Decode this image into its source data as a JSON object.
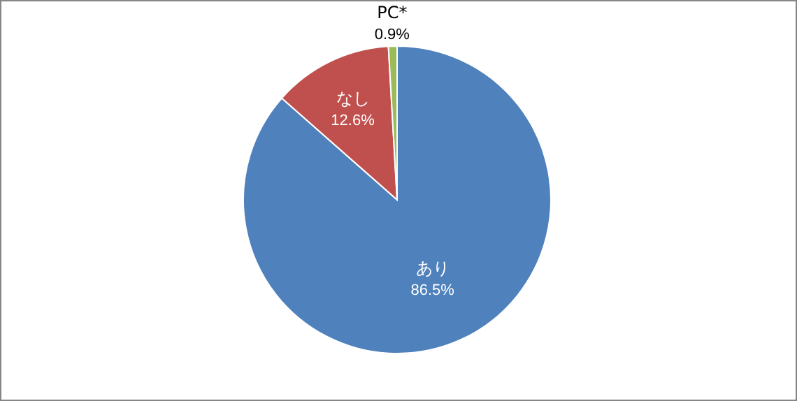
{
  "chart_data": {
    "type": "pie",
    "categories": [
      "あり",
      "なし",
      "PC*"
    ],
    "values": [
      86.5,
      12.6,
      0.9
    ],
    "value_labels": [
      "86.5%",
      "12.6%",
      "0.9%"
    ],
    "colors": [
      "#4f81bd",
      "#c0504d",
      "#9bbb59"
    ]
  }
}
